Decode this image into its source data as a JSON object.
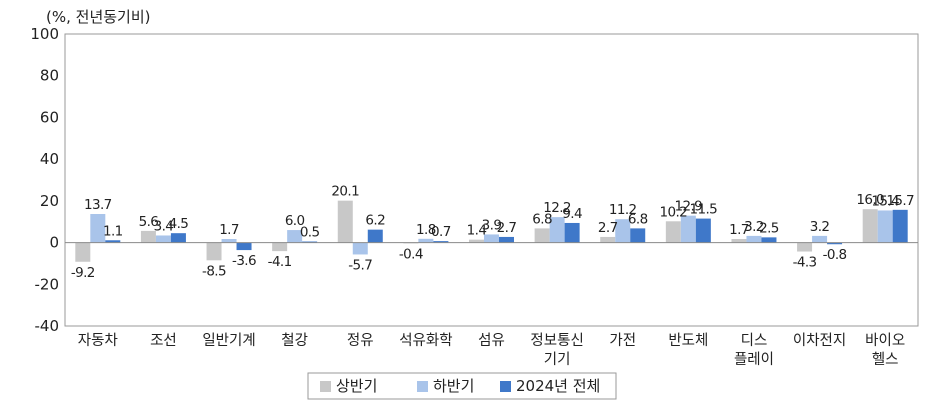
{
  "chart_data": {
    "type": "bar",
    "unit_label": "(%, 전년동기비)",
    "categories": [
      [
        "자동차"
      ],
      [
        "조선"
      ],
      [
        "일반기계"
      ],
      [
        "철강"
      ],
      [
        "정유"
      ],
      [
        "석유화학"
      ],
      [
        "섬유"
      ],
      [
        "정보통신",
        "기기"
      ],
      [
        "가전"
      ],
      [
        "반도체"
      ],
      [
        "디스",
        "플레이"
      ],
      [
        "이차전지"
      ],
      [
        "바이오",
        "헬스"
      ]
    ],
    "series": [
      {
        "name": "상반기",
        "color": "#c8c8c8",
        "values": [
          -9.2,
          5.6,
          -8.5,
          -4.1,
          20.1,
          -0.4,
          1.4,
          6.8,
          2.7,
          10.2,
          1.7,
          -4.3,
          16.0
        ]
      },
      {
        "name": "하반기",
        "color": "#a9c4ea",
        "values": [
          13.7,
          3.4,
          1.7,
          6.0,
          -5.7,
          1.8,
          3.9,
          12.2,
          11.2,
          12.9,
          3.2,
          3.2,
          15.4
        ]
      },
      {
        "name": "2024년 전체",
        "color": "#3f78c9",
        "values": [
          1.1,
          4.5,
          -3.6,
          0.5,
          6.2,
          0.7,
          2.7,
          9.4,
          6.8,
          11.5,
          2.5,
          -0.8,
          15.7
        ]
      }
    ],
    "data_labels": [
      [
        "-9.2",
        "13.7",
        "1.1"
      ],
      [
        "5.6",
        "3.4",
        "4.5"
      ],
      [
        "-8.5",
        "1.7",
        "-3.6"
      ],
      [
        "-4.1",
        "6.0",
        "0.5"
      ],
      [
        "20.1",
        "-5.7",
        "6.2"
      ],
      [
        "-0.4",
        "1.8",
        "0.7"
      ],
      [
        "1.4",
        "3.9",
        "2.7"
      ],
      [
        "6.8",
        "12.2",
        "9.4"
      ],
      [
        "2.7",
        "11.2",
        "6.8"
      ],
      [
        "10.2",
        "12.9",
        "11.5"
      ],
      [
        "1.7",
        "3.2",
        "2.5"
      ],
      [
        "-4.3",
        "3.2",
        "-0.8"
      ],
      [
        "16.0",
        "15.4",
        "15.7"
      ]
    ],
    "ylim": [
      -40,
      100
    ],
    "yticks": [
      "100",
      "80",
      "60",
      "40",
      "20",
      "0",
      "-20",
      "-40"
    ],
    "grid": false,
    "legend_position": "bottom"
  }
}
